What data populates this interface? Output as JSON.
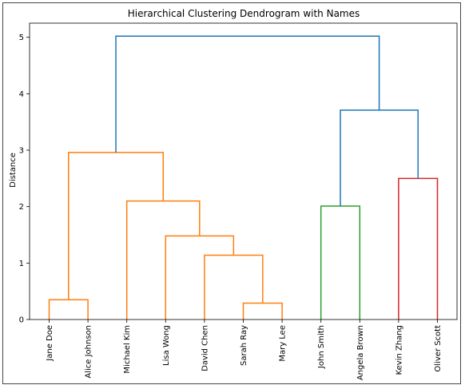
{
  "chart_data": {
    "type": "dendrogram",
    "title": "Hierarchical Clustering Dendrogram with Names",
    "xlabel": "",
    "ylabel": "Distance",
    "ylim": [
      0,
      5.25
    ],
    "yticks": [
      0,
      1,
      2,
      3,
      4,
      5
    ],
    "leaves": [
      "Jane Doe",
      "Alice Johnson",
      "Michael Kim",
      "Lisa Wong",
      "David Chen",
      "Sarah Ray",
      "Mary Lee",
      "John Smith",
      "Angela Brown",
      "Kevin Zhang",
      "Oliver Scott"
    ],
    "links": [
      {
        "left": "Jane Doe",
        "right": "Alice Johnson",
        "height": 0.35,
        "color": "#ff7f0e"
      },
      {
        "left": "Sarah Ray",
        "right": "Mary Lee",
        "height": 0.29,
        "color": "#ff7f0e"
      },
      {
        "left": "David Chen",
        "right": "Sarah Ray + Mary Lee",
        "height": 1.14,
        "color": "#ff7f0e"
      },
      {
        "left": "Lisa Wong",
        "right": "David Chen + Sarah Ray + Mary Lee",
        "height": 1.48,
        "color": "#ff7f0e"
      },
      {
        "left": "Michael Kim",
        "right": "Lisa Wong + David Chen + Sarah Ray + Mary Lee",
        "height": 2.1,
        "color": "#ff7f0e"
      },
      {
        "left": "Jane Doe + Alice Johnson",
        "right": "Michael Kim + Lisa Wong + David Chen + Sarah Ray + Mary Lee",
        "height": 2.96,
        "color": "#ff7f0e"
      },
      {
        "left": "John Smith",
        "right": "Angela Brown",
        "height": 2.01,
        "color": "#2ca02c"
      },
      {
        "left": "Kevin Zhang",
        "right": "Oliver Scott",
        "height": 2.5,
        "color": "#d62728"
      },
      {
        "left": "John Smith + Angela Brown",
        "right": "Kevin Zhang + Oliver Scott",
        "height": 3.71,
        "color": "#1f77b4"
      },
      {
        "left": "Jane Doe + Alice Johnson + Michael Kim + Lisa Wong + David Chen + Sarah Ray + Mary Lee",
        "right": "John Smith + Angela Brown + Kevin Zhang + Oliver Scott",
        "height": 5.02,
        "color": "#1f77b4"
      }
    ]
  }
}
